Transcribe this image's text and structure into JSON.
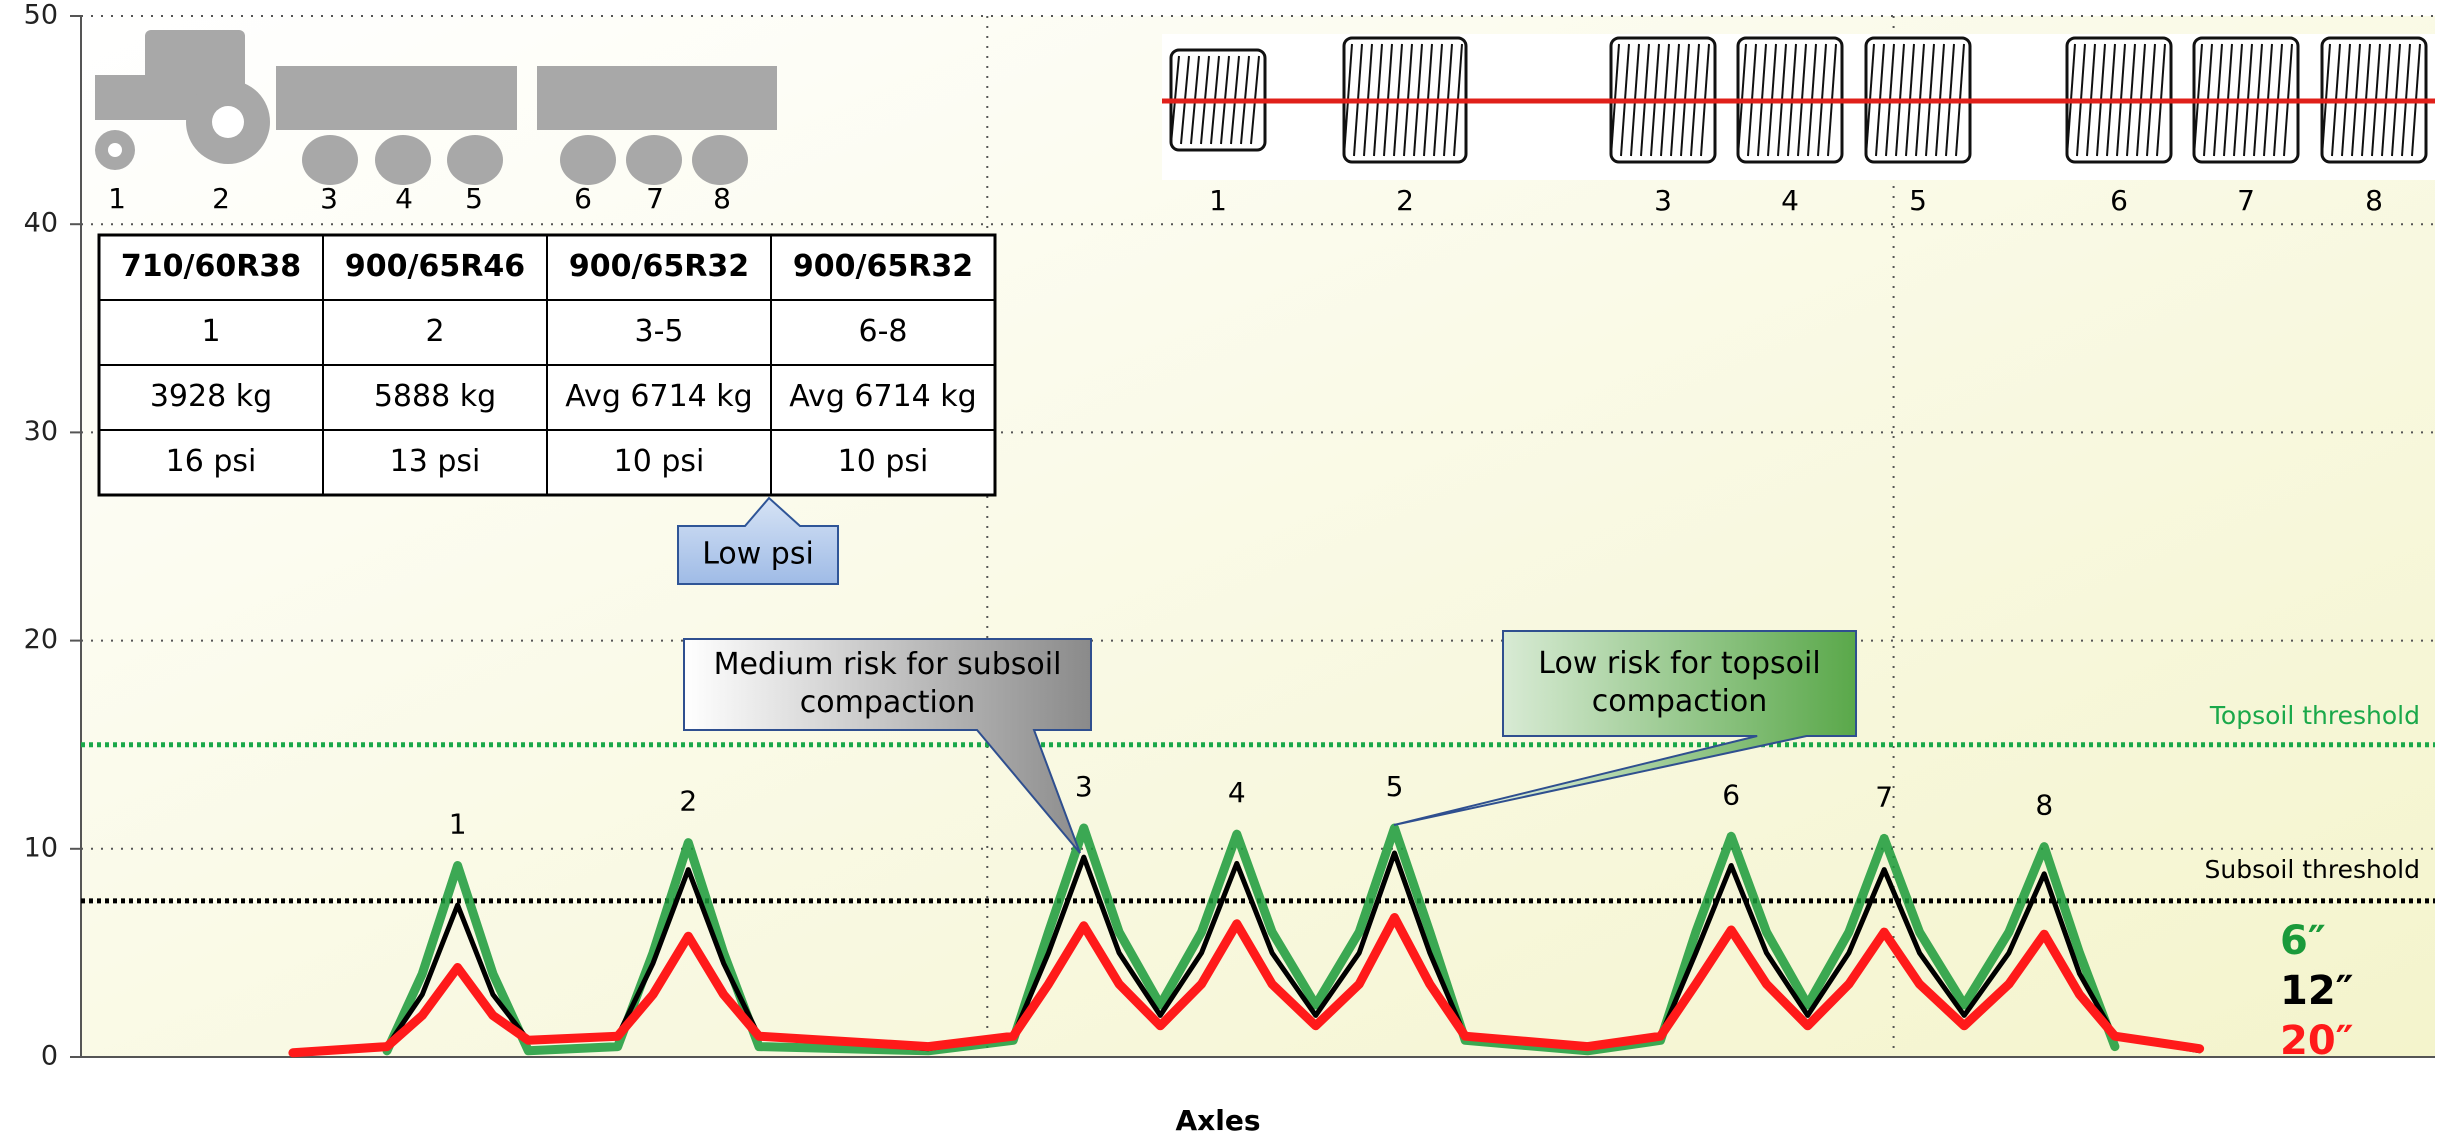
{
  "chart_data": {
    "type": "line",
    "x_label": "Axles",
    "x": [
      9,
      13,
      14.5,
      16,
      17.5,
      19,
      22.8,
      24.3,
      25.8,
      27.3,
      28.8,
      36,
      39.6,
      41.1,
      42.6,
      44.1,
      45.85,
      47.6,
      49.1,
      50.6,
      52.45,
      54.3,
      55.8,
      57.3,
      58.8,
      64,
      67.1,
      68.6,
      70.1,
      71.6,
      73.35,
      75.1,
      76.6,
      78.1,
      80,
      81.9,
      83.4,
      84.9,
      86.4,
      90
    ],
    "xlim": [
      0,
      100
    ],
    "xgrid": [
      38.5,
      77
    ],
    "ylim": [
      0,
      50
    ],
    "yticks": [
      0,
      10,
      20,
      30,
      40,
      50
    ],
    "grid": true,
    "series": [
      {
        "name": "6″",
        "color": "#1a9a3a",
        "values": [
          null,
          0.3,
          4,
          9.2,
          4,
          0.3,
          0.5,
          5,
          10.3,
          5,
          0.5,
          0.3,
          0.8,
          6,
          11,
          6,
          2.5,
          6,
          10.7,
          6,
          2.5,
          6,
          11,
          6,
          0.8,
          0.3,
          0.8,
          6,
          10.6,
          6,
          2.5,
          6,
          10.5,
          6,
          2.5,
          6,
          10.1,
          5,
          0.5,
          null
        ]
      },
      {
        "name": "12″",
        "color": "#000000",
        "values": [
          0.2,
          0.5,
          3,
          7.3,
          3,
          0.8,
          1,
          4.5,
          9,
          4.5,
          1,
          0.4,
          1,
          5,
          9.6,
          5,
          2,
          5,
          9.3,
          5,
          2,
          5,
          9.8,
          5,
          1,
          0.5,
          1,
          5,
          9.2,
          5,
          2,
          5,
          9,
          5,
          2,
          5,
          8.8,
          4,
          1,
          0.3
        ]
      },
      {
        "name": "20″",
        "color": "#ff1a1a",
        "values": [
          0.2,
          0.5,
          2,
          4.3,
          2,
          0.8,
          1,
          3,
          5.8,
          3,
          1,
          0.5,
          1,
          3.5,
          6.3,
          3.5,
          1.5,
          3.5,
          6.4,
          3.5,
          1.5,
          3.5,
          6.7,
          3.5,
          1,
          0.5,
          1,
          3.5,
          6.1,
          3.5,
          1.5,
          3.5,
          6,
          3.5,
          1.5,
          3.5,
          5.9,
          3,
          1,
          0.4
        ]
      }
    ],
    "thresholds": [
      {
        "name": "Topsoil threshold",
        "value": 15,
        "color": "#1aa84a"
      },
      {
        "name": "Subsoil threshold",
        "value": 7.5,
        "color": "#000000"
      }
    ],
    "peak_labels": [
      "1",
      "2",
      "3",
      "4",
      "5",
      "6",
      "7",
      "8"
    ],
    "callouts": [
      [
        "Medium risk for subsoil",
        "compaction"
      ],
      [
        "Low risk for topsoil",
        "compaction"
      ],
      [
        "Low psi"
      ]
    ]
  },
  "diagram": {
    "tractor_labels": [
      "1",
      "2",
      "3",
      "4",
      "5",
      "6",
      "7",
      "8"
    ],
    "tire_labels": [
      "1",
      "2",
      "3",
      "4",
      "5",
      "6",
      "7",
      "8"
    ]
  },
  "table": {
    "header": [
      "710/60R38",
      "900/65R46",
      "900/65R32",
      "900/65R32"
    ],
    "rows": [
      [
        "1",
        "2",
        "3-5",
        "6-8"
      ],
      [
        "3928 kg",
        "5888 kg",
        "Avg 6714 kg",
        "Avg 6714 kg"
      ],
      [
        "16 psi",
        "13 psi",
        "10 psi",
        "10 psi"
      ]
    ]
  }
}
